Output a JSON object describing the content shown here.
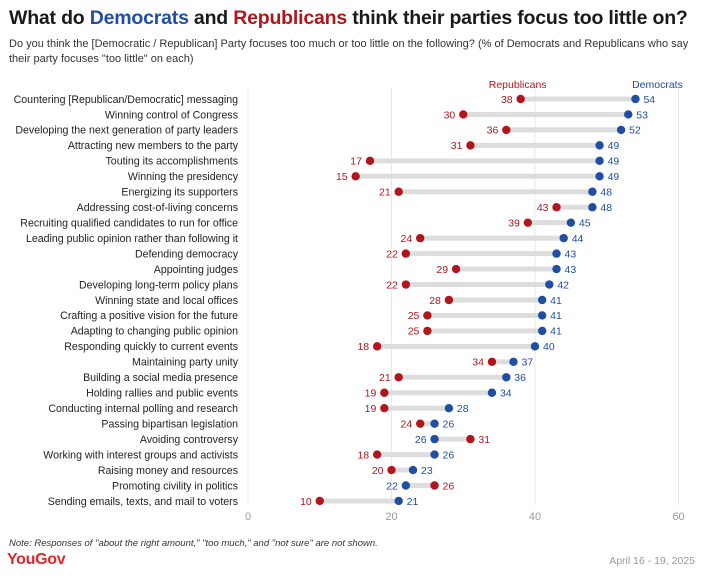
{
  "header": {
    "title_part1": "What do ",
    "title_dem": "Democrats",
    "title_part2": " and ",
    "title_rep": "Republicans",
    "title_part3": " think their parties focus too little on?",
    "subtitle": "Do you think the [Democratic / Republican] Party focuses too much or too little on the following? (% of Democrats and Republicans who say their party focuses \"too little\" on each)"
  },
  "footer": {
    "note": "Note: Responses of \"about the right amount,\" \"too much,\" and \"not sure\" are not shown.",
    "brand": "YouGov",
    "date": "April 16 - 19, 2025"
  },
  "colors": {
    "democrats": "#1f4ea3",
    "republicans": "#b0161c",
    "connector": "#dddddd",
    "gridline": "#e8e8e8"
  },
  "chart_data": {
    "type": "dot",
    "xlim": [
      0,
      60
    ],
    "xticks": [
      0,
      20,
      40,
      60
    ],
    "grid": true,
    "legend": "top-right, labels above first row",
    "series": [
      {
        "name": "Republicans",
        "values": [
          38,
          30,
          36,
          31,
          17,
          15,
          21,
          43,
          39,
          24,
          22,
          29,
          22,
          28,
          25,
          25,
          18,
          34,
          21,
          19,
          19,
          24,
          31,
          18,
          20,
          26,
          10
        ]
      },
      {
        "name": "Democrats",
        "values": [
          54,
          53,
          52,
          49,
          49,
          49,
          48,
          48,
          45,
          44,
          43,
          43,
          42,
          41,
          41,
          41,
          40,
          37,
          36,
          34,
          28,
          26,
          26,
          26,
          23,
          22,
          21
        ]
      }
    ],
    "categories": [
      "Countering [Republican/Democratic] messaging",
      "Winning control of Congress",
      "Developing the next generation of party leaders",
      "Attracting new members to the party",
      "Touting its accomplishments",
      "Winning the presidency",
      "Energizing its supporters",
      "Addressing cost-of-living concerns",
      "Recruiting qualified candidates to run for office",
      "Leading public opinion rather than following it",
      "Defending democracy",
      "Appointing judges",
      "Developing long-term policy plans",
      "Winning state and local offices",
      "Crafting a positive vision for the future",
      "Adapting to changing public opinion",
      "Responding quickly to current events",
      "Maintaining party unity",
      "Building a social media presence",
      "Holding rallies and public events",
      "Conducting internal polling and research",
      "Passing bipartisan legislation",
      "Avoiding controversy",
      "Working with interest groups and activists",
      "Raising money and resources",
      "Promoting civility in politics",
      "Sending emails, texts, and mail to voters"
    ]
  }
}
